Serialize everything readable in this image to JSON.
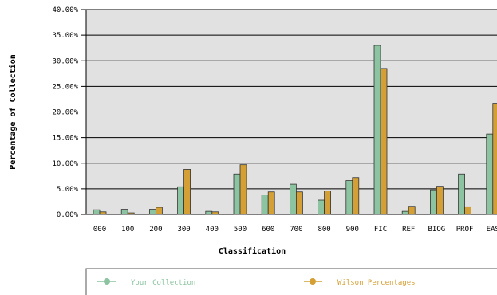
{
  "colors": {
    "plot_bg": "#e1e1e1",
    "grid": "#000000",
    "your_collection": "#8cc3a0",
    "wilson": "#d4a035",
    "bar_stroke": "#333333"
  },
  "chart_data": {
    "type": "bar",
    "title": "",
    "xlabel": "Classification",
    "ylabel": "Percentage of Collection",
    "ylim": [
      0,
      40
    ],
    "y_ticks": [
      "0.00%",
      "5.00%",
      "10.00%",
      "15.00%",
      "20.00%",
      "25.00%",
      "30.00%",
      "35.00%",
      "40.00%"
    ],
    "y_tick_values": [
      0,
      5,
      10,
      15,
      20,
      25,
      30,
      35,
      40
    ],
    "grid": true,
    "legend_position": "bottom",
    "categories": [
      "000",
      "100",
      "200",
      "300",
      "400",
      "500",
      "600",
      "700",
      "800",
      "900",
      "FIC",
      "REF",
      "BIOG",
      "PROF",
      "EAS"
    ],
    "series": [
      {
        "name": "Your Collection",
        "color": "#8cc3a0",
        "values": [
          0.9,
          1.0,
          1.0,
          5.4,
          0.6,
          7.9,
          3.8,
          5.9,
          2.8,
          6.6,
          33.0,
          0.6,
          4.8,
          7.9,
          15.7
        ]
      },
      {
        "name": "Wilson Percentages",
        "color": "#d4a035",
        "values": [
          0.5,
          0.3,
          1.4,
          8.8,
          0.5,
          9.7,
          4.4,
          4.4,
          4.6,
          7.2,
          28.5,
          1.6,
          5.5,
          1.5,
          21.7
        ]
      }
    ]
  }
}
